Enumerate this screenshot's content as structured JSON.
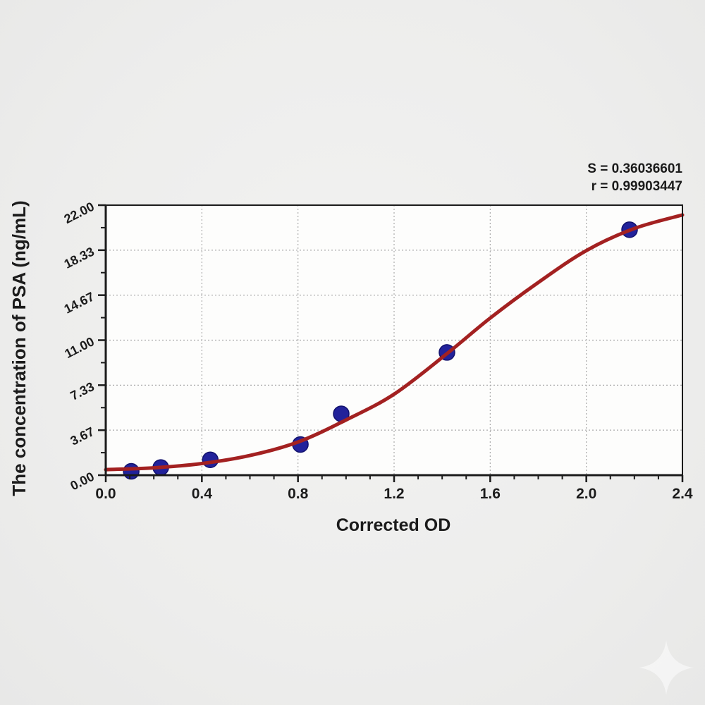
{
  "page": {
    "background_color": "#ececeb",
    "plot_background_color": "#fdfdfc"
  },
  "chart_data": {
    "type": "scatter",
    "title": "",
    "xlabel": "Corrected OD",
    "ylabel": "The concentration of PSA (ng/mL)",
    "xlim": [
      0,
      2.4
    ],
    "ylim": [
      0,
      22
    ],
    "xticks_major": [
      0.0,
      0.4,
      0.8,
      1.2,
      1.6,
      2.0,
      2.4
    ],
    "xtick_labels": [
      "0.0",
      "0.4",
      "0.8",
      "1.2",
      "1.6",
      "2.0",
      "2.4"
    ],
    "xtick_minor_step": 0.1,
    "yticks_major": [
      0,
      3.667,
      7.333,
      11.0,
      14.667,
      18.333,
      22.0
    ],
    "ytick_labels": [
      "0.00",
      "3.67",
      "7.33",
      "11.00",
      "14.67",
      "18.33",
      "22.00"
    ],
    "ytick_minor_offset": 1.8335,
    "grid": "dotted at major ticks",
    "legend_position": "none",
    "annotations": {
      "s_label": "S = 0.36036601",
      "r_label": "r = 0.99903447"
    },
    "series": [
      {
        "name": "standard points",
        "type": "scatter",
        "marker": "circle",
        "color": "#22229b",
        "edge_color": "#12126e",
        "points": [
          [
            0.106,
            0.313
          ],
          [
            0.229,
            0.625
          ],
          [
            0.435,
            1.25
          ],
          [
            0.81,
            2.5
          ],
          [
            0.98,
            5.0
          ],
          [
            1.42,
            10.0
          ],
          [
            2.18,
            20.0
          ]
        ]
      },
      {
        "name": "4PL fit curve",
        "type": "line",
        "color": "#a32121",
        "points": [
          [
            0.0,
            0.45
          ],
          [
            0.2,
            0.6
          ],
          [
            0.4,
            0.95
          ],
          [
            0.6,
            1.6
          ],
          [
            0.8,
            2.7
          ],
          [
            1.0,
            4.5
          ],
          [
            1.2,
            6.6
          ],
          [
            1.42,
            9.9
          ],
          [
            1.6,
            12.8
          ],
          [
            1.8,
            15.7
          ],
          [
            2.0,
            18.3
          ],
          [
            2.2,
            20.1
          ],
          [
            2.4,
            21.2
          ]
        ]
      }
    ],
    "colors": {
      "axis": "#1b1b1b",
      "grid": "#ababab",
      "curve": "#a32121",
      "point_fill": "#22229b",
      "point_edge": "#12126e",
      "text": "#1b1b1b"
    }
  },
  "watermark": {
    "shape": "sparkle",
    "color": "#fafafa"
  }
}
